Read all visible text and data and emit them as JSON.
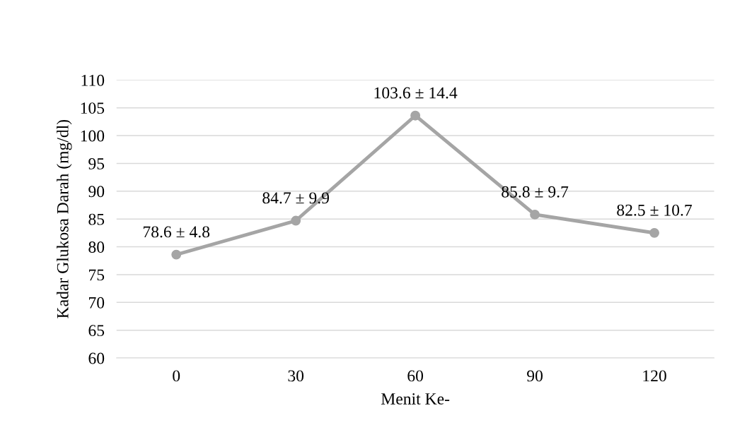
{
  "chart_data": {
    "type": "line",
    "xlabel": "Menit Ke-",
    "ylabel": "Kadar Glukosa Darah (mg/dl)",
    "categories": [
      "0",
      "30",
      "60",
      "90",
      "120"
    ],
    "series": [
      {
        "color": "#a5a5a5",
        "values": [
          78.6,
          84.7,
          103.6,
          85.8,
          82.5
        ],
        "value_labels": [
          "78.6 ± 4.8",
          "84.7 ± 9.9",
          "103.6 ± 14.4",
          "85.8 ± 9.7",
          "82.5 ± 10.7"
        ]
      }
    ],
    "ylim": [
      60,
      110
    ],
    "yticks": [
      60,
      65,
      70,
      75,
      80,
      85,
      90,
      95,
      100,
      105,
      110
    ],
    "grid": "y",
    "marker": "circle",
    "line_style": "solid",
    "legend": false
  }
}
